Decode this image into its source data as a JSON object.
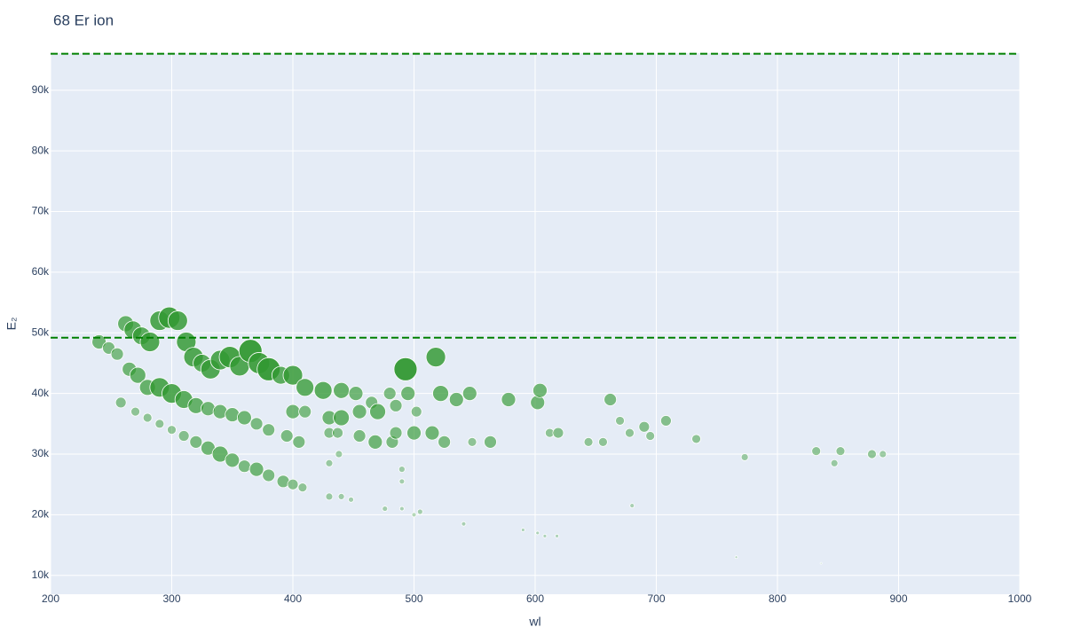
{
  "chart_data": {
    "type": "scatter",
    "title": "68 Er ion",
    "x_label": "wl",
    "y_label": "E₂",
    "xlim": [
      200,
      1000
    ],
    "xticks": [
      200,
      300,
      400,
      500,
      600,
      700,
      800,
      900,
      1000
    ],
    "ylim": [
      6900,
      96100
    ],
    "yticks": [
      {
        "value": 10000,
        "label": "10k"
      },
      {
        "value": 20000,
        "label": "20k"
      },
      {
        "value": 30000,
        "label": "30k"
      },
      {
        "value": 40000,
        "label": "40k"
      },
      {
        "value": 50000,
        "label": "50k"
      },
      {
        "value": 60000,
        "label": "60k"
      },
      {
        "value": 70000,
        "label": "70k"
      },
      {
        "value": 80000,
        "label": "80k"
      },
      {
        "value": 90000,
        "label": "90k"
      }
    ],
    "grid": true,
    "reference_lines": {
      "values": [
        96000,
        49200
      ],
      "color": "#008000"
    },
    "color": "#339933",
    "x": [
      240,
      248,
      255,
      262,
      268,
      275,
      282,
      290,
      298,
      305,
      312,
      318,
      325,
      332,
      340,
      348,
      356,
      365,
      372,
      380,
      390,
      400,
      410,
      425,
      440,
      452,
      465,
      480,
      493,
      518,
      522,
      535,
      546,
      578,
      602,
      604,
      662,
      265,
      272,
      280,
      290,
      300,
      310,
      320,
      330,
      340,
      350,
      360,
      370,
      380,
      395,
      405,
      270,
      280,
      290,
      300,
      310,
      320,
      330,
      340,
      350,
      360,
      370,
      380,
      392,
      400,
      408,
      258,
      400,
      410,
      430,
      440,
      455,
      470,
      485,
      495,
      430,
      437,
      455,
      468,
      482,
      485,
      500,
      515,
      525,
      548,
      563,
      502,
      612,
      619,
      644,
      656,
      670,
      678,
      690,
      695,
      708,
      733,
      773,
      832,
      847,
      852,
      878,
      887,
      430,
      438,
      430,
      440,
      448,
      476,
      490,
      490,
      490,
      500,
      505,
      541,
      590,
      602,
      608,
      618,
      680,
      766,
      836
    ],
    "values": [
      48500,
      47500,
      46500,
      51500,
      50500,
      49500,
      48500,
      52000,
      52500,
      52000,
      48500,
      46000,
      45000,
      44000,
      45500,
      46000,
      44500,
      47000,
      45000,
      44000,
      43000,
      43000,
      41000,
      40500,
      40500,
      40000,
      38500,
      40000,
      44000,
      46000,
      40000,
      39000,
      40000,
      39000,
      38500,
      40500,
      39000,
      44000,
      43000,
      41000,
      41000,
      40000,
      39000,
      38000,
      37500,
      37000,
      36500,
      36000,
      35000,
      34000,
      33000,
      32000,
      37000,
      36000,
      35000,
      34000,
      33000,
      32000,
      31000,
      30000,
      29000,
      28000,
      27500,
      26500,
      25500,
      25000,
      24500,
      38500,
      37000,
      37000,
      36000,
      36000,
      37000,
      37000,
      38000,
      40000,
      33500,
      33500,
      33000,
      32000,
      32000,
      33500,
      33500,
      33500,
      32000,
      32000,
      32000,
      37000,
      33500,
      33500,
      32000,
      32000,
      35500,
      33500,
      34500,
      33000,
      35500,
      32500,
      29500,
      30500,
      28500,
      30500,
      30000,
      30000,
      28500,
      30000,
      23000,
      23000,
      22500,
      21000,
      21000,
      27500,
      25500,
      20000,
      20500,
      18500,
      17500,
      17000,
      16500,
      16500,
      21500,
      13000,
      12000
    ],
    "sizes": [
      16,
      14,
      14,
      18,
      20,
      20,
      22,
      22,
      24,
      22,
      22,
      22,
      20,
      22,
      22,
      24,
      22,
      26,
      24,
      26,
      20,
      22,
      20,
      20,
      18,
      16,
      14,
      14,
      26,
      22,
      18,
      16,
      16,
      16,
      16,
      16,
      14,
      16,
      18,
      18,
      22,
      22,
      20,
      18,
      16,
      16,
      16,
      16,
      14,
      14,
      14,
      14,
      10,
      10,
      10,
      10,
      12,
      14,
      16,
      18,
      16,
      14,
      16,
      14,
      14,
      12,
      10,
      12,
      16,
      14,
      16,
      18,
      16,
      18,
      14,
      16,
      12,
      12,
      14,
      16,
      14,
      14,
      16,
      16,
      14,
      10,
      14,
      12,
      10,
      12,
      10,
      10,
      10,
      10,
      12,
      10,
      12,
      10,
      8,
      10,
      8,
      10,
      10,
      8,
      8,
      8,
      8,
      7,
      6,
      6,
      5,
      7,
      6,
      5,
      6,
      5,
      4,
      4,
      4,
      4,
      5,
      3,
      2
    ]
  }
}
